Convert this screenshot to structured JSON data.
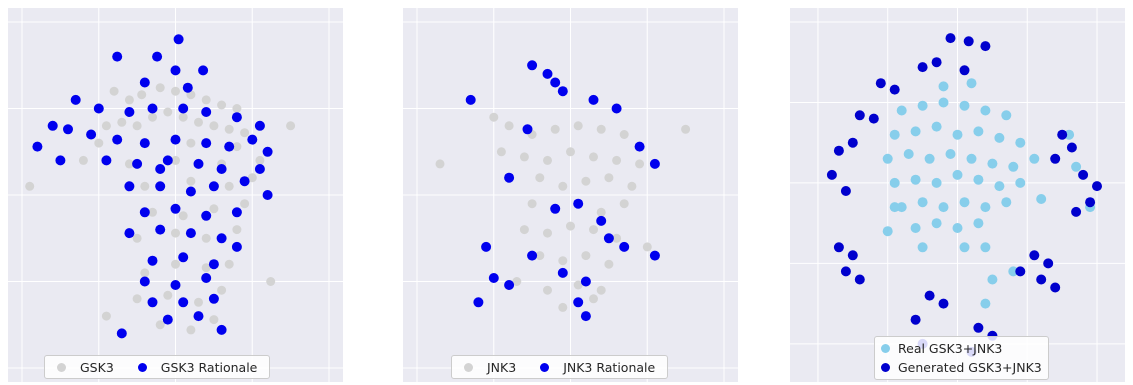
{
  "chart_data": [
    {
      "type": "scatter",
      "title": "",
      "xlabel": "",
      "ylabel": "",
      "grid": true,
      "legend_position": "bottom-center",
      "series": [
        {
          "name": "GSK3",
          "color": "#d3d3d3",
          "points": [
            [
              -40,
              60
            ],
            [
              -30,
              55
            ],
            [
              -22,
              58
            ],
            [
              -10,
              62
            ],
            [
              0,
              60
            ],
            [
              10,
              58
            ],
            [
              20,
              55
            ],
            [
              30,
              52
            ],
            [
              40,
              50
            ],
            [
              -45,
              40
            ],
            [
              -35,
              42
            ],
            [
              -25,
              40
            ],
            [
              -15,
              45
            ],
            [
              -5,
              48
            ],
            [
              5,
              45
            ],
            [
              15,
              42
            ],
            [
              25,
              40
            ],
            [
              35,
              38
            ],
            [
              45,
              36
            ],
            [
              -50,
              30
            ],
            [
              -20,
              30
            ],
            [
              10,
              30
            ],
            [
              40,
              28
            ],
            [
              -60,
              20
            ],
            [
              -30,
              18
            ],
            [
              0,
              20
            ],
            [
              30,
              18
            ],
            [
              55,
              20
            ],
            [
              -20,
              5
            ],
            [
              10,
              8
            ],
            [
              35,
              5
            ],
            [
              50,
              10
            ],
            [
              -15,
              -10
            ],
            [
              5,
              -12
            ],
            [
              25,
              -8
            ],
            [
              45,
              -5
            ],
            [
              -25,
              -25
            ],
            [
              0,
              -22
            ],
            [
              20,
              -25
            ],
            [
              40,
              -20
            ],
            [
              -20,
              -45
            ],
            [
              0,
              -40
            ],
            [
              20,
              -42
            ],
            [
              35,
              -40
            ],
            [
              -25,
              -60
            ],
            [
              -5,
              -58
            ],
            [
              15,
              -62
            ],
            [
              30,
              -55
            ],
            [
              -10,
              -75
            ],
            [
              10,
              -78
            ],
            [
              25,
              -72
            ],
            [
              -95,
              5
            ],
            [
              75,
              40
            ],
            [
              -45,
              -70
            ],
            [
              62,
              -50
            ]
          ]
        },
        {
          "name": "GSK3 Rationale",
          "color": "#0000ee",
          "points": [
            [
              2,
              90
            ],
            [
              -12,
              80
            ],
            [
              -38,
              80
            ],
            [
              0,
              72
            ],
            [
              18,
              72
            ],
            [
              -20,
              65
            ],
            [
              8,
              62
            ],
            [
              -65,
              55
            ],
            [
              -50,
              50
            ],
            [
              -30,
              48
            ],
            [
              -15,
              50
            ],
            [
              5,
              50
            ],
            [
              20,
              48
            ],
            [
              40,
              45
            ],
            [
              55,
              40
            ],
            [
              -80,
              40
            ],
            [
              -70,
              38
            ],
            [
              -55,
              35
            ],
            [
              -38,
              32
            ],
            [
              -20,
              30
            ],
            [
              0,
              32
            ],
            [
              20,
              30
            ],
            [
              35,
              28
            ],
            [
              50,
              32
            ],
            [
              60,
              25
            ],
            [
              -45,
              20
            ],
            [
              -25,
              18
            ],
            [
              -5,
              20
            ],
            [
              15,
              18
            ],
            [
              30,
              15
            ],
            [
              55,
              15
            ],
            [
              -30,
              5
            ],
            [
              -10,
              5
            ],
            [
              10,
              2
            ],
            [
              25,
              5
            ],
            [
              45,
              8
            ],
            [
              60,
              0
            ],
            [
              -20,
              -10
            ],
            [
              0,
              -8
            ],
            [
              20,
              -12
            ],
            [
              40,
              -10
            ],
            [
              -30,
              -22
            ],
            [
              -10,
              -20
            ],
            [
              10,
              -22
            ],
            [
              30,
              -25
            ],
            [
              -15,
              -38
            ],
            [
              5,
              -36
            ],
            [
              25,
              -40
            ],
            [
              -20,
              -50
            ],
            [
              0,
              -52
            ],
            [
              20,
              -48
            ],
            [
              -15,
              -62
            ],
            [
              5,
              -62
            ],
            [
              25,
              -60
            ],
            [
              -5,
              -72
            ],
            [
              15,
              -70
            ],
            [
              -35,
              -80
            ],
            [
              30,
              -78
            ],
            [
              -90,
              28
            ],
            [
              -75,
              20
            ],
            [
              -10,
              15
            ],
            [
              40,
              -30
            ]
          ]
        }
      ],
      "xlim": [
        -100,
        100
      ],
      "ylim": [
        -100,
        100
      ]
    },
    {
      "type": "scatter",
      "title": "",
      "xlabel": "",
      "ylabel": "",
      "grid": true,
      "legend_position": "bottom-center",
      "series": [
        {
          "name": "JNK3",
          "color": "#d3d3d3",
          "points": [
            [
              -40,
              40
            ],
            [
              -25,
              35
            ],
            [
              -10,
              38
            ],
            [
              5,
              40
            ],
            [
              20,
              38
            ],
            [
              35,
              35
            ],
            [
              -45,
              25
            ],
            [
              -30,
              22
            ],
            [
              -15,
              20
            ],
            [
              0,
              25
            ],
            [
              15,
              22
            ],
            [
              30,
              20
            ],
            [
              45,
              18
            ],
            [
              -20,
              10
            ],
            [
              -5,
              5
            ],
            [
              10,
              8
            ],
            [
              25,
              10
            ],
            [
              40,
              5
            ],
            [
              -25,
              -5
            ],
            [
              -10,
              -8
            ],
            [
              5,
              -5
            ],
            [
              20,
              -10
            ],
            [
              35,
              -5
            ],
            [
              -30,
              -20
            ],
            [
              -15,
              -22
            ],
            [
              0,
              -18
            ],
            [
              15,
              -20
            ],
            [
              30,
              -25
            ],
            [
              -20,
              -35
            ],
            [
              -5,
              -38
            ],
            [
              10,
              -35
            ],
            [
              25,
              -40
            ],
            [
              -35,
              -50
            ],
            [
              -15,
              -55
            ],
            [
              5,
              -52
            ],
            [
              20,
              -55
            ],
            [
              -5,
              -65
            ],
            [
              15,
              -60
            ],
            [
              -85,
              18
            ],
            [
              75,
              38
            ],
            [
              -50,
              45
            ],
            [
              50,
              -30
            ]
          ]
        },
        {
          "name": "JNK3 Rationale",
          "color": "#0000ee",
          "points": [
            [
              -25,
              75
            ],
            [
              -15,
              70
            ],
            [
              -10,
              65
            ],
            [
              -5,
              60
            ],
            [
              -65,
              55
            ],
            [
              15,
              55
            ],
            [
              30,
              50
            ],
            [
              -28,
              38
            ],
            [
              45,
              28
            ],
            [
              55,
              18
            ],
            [
              -40,
              10
            ],
            [
              -10,
              -8
            ],
            [
              5,
              -5
            ],
            [
              20,
              -15
            ],
            [
              25,
              -25
            ],
            [
              -55,
              -30
            ],
            [
              -25,
              -35
            ],
            [
              35,
              -30
            ],
            [
              55,
              -35
            ],
            [
              -50,
              -48
            ],
            [
              -40,
              -52
            ],
            [
              -5,
              -45
            ],
            [
              10,
              -50
            ],
            [
              -60,
              -62
            ],
            [
              5,
              -62
            ],
            [
              10,
              -70
            ]
          ]
        }
      ],
      "xlim": [
        -100,
        100
      ],
      "ylim": [
        -100,
        100
      ]
    },
    {
      "type": "scatter",
      "title": "",
      "xlabel": "",
      "ylabel": "",
      "grid": true,
      "legend_position": "bottom-center",
      "series": [
        {
          "name": "Real GSK3+JNK3",
          "color": "#87ceeb",
          "points": [
            [
              -40,
              45
            ],
            [
              -25,
              48
            ],
            [
              -10,
              50
            ],
            [
              5,
              48
            ],
            [
              20,
              45
            ],
            [
              35,
              42
            ],
            [
              -45,
              30
            ],
            [
              -30,
              32
            ],
            [
              -15,
              35
            ],
            [
              0,
              30
            ],
            [
              15,
              32
            ],
            [
              30,
              28
            ],
            [
              45,
              25
            ],
            [
              -50,
              15
            ],
            [
              -35,
              18
            ],
            [
              -20,
              15
            ],
            [
              -5,
              18
            ],
            [
              10,
              15
            ],
            [
              25,
              12
            ],
            [
              40,
              10
            ],
            [
              55,
              15
            ],
            [
              -45,
              0
            ],
            [
              -30,
              2
            ],
            [
              -15,
              0
            ],
            [
              0,
              5
            ],
            [
              15,
              2
            ],
            [
              30,
              -2
            ],
            [
              45,
              0
            ],
            [
              -40,
              -15
            ],
            [
              -25,
              -12
            ],
            [
              -10,
              -15
            ],
            [
              5,
              -12
            ],
            [
              20,
              -15
            ],
            [
              35,
              -12
            ],
            [
              -30,
              -28
            ],
            [
              -15,
              -25
            ],
            [
              0,
              -28
            ],
            [
              15,
              -25
            ],
            [
              -50,
              -30
            ],
            [
              -25,
              -40
            ],
            [
              5,
              -40
            ],
            [
              20,
              -40
            ],
            [
              -10,
              60
            ],
            [
              10,
              62
            ],
            [
              80,
              30
            ],
            [
              85,
              10
            ],
            [
              95,
              -15
            ],
            [
              20,
              -75
            ],
            [
              25,
              -60
            ],
            [
              40,
              -55
            ],
            [
              -45,
              -15
            ],
            [
              60,
              -10
            ]
          ]
        },
        {
          "name": "Generated GSK3+JNK3",
          "color": "#0000cd",
          "points": [
            [
              -5,
              90
            ],
            [
              8,
              88
            ],
            [
              20,
              85
            ],
            [
              -25,
              72
            ],
            [
              -15,
              75
            ],
            [
              5,
              70
            ],
            [
              -55,
              62
            ],
            [
              -45,
              58
            ],
            [
              -70,
              42
            ],
            [
              -60,
              40
            ],
            [
              -75,
              25
            ],
            [
              -85,
              20
            ],
            [
              -90,
              5
            ],
            [
              -80,
              -5
            ],
            [
              75,
              30
            ],
            [
              82,
              22
            ],
            [
              70,
              15
            ],
            [
              90,
              5
            ],
            [
              100,
              -2
            ],
            [
              95,
              -12
            ],
            [
              85,
              -18
            ],
            [
              -85,
              -40
            ],
            [
              -75,
              -45
            ],
            [
              -80,
              -55
            ],
            [
              -70,
              -60
            ],
            [
              55,
              -45
            ],
            [
              65,
              -50
            ],
            [
              60,
              -60
            ],
            [
              70,
              -65
            ],
            [
              45,
              -55
            ],
            [
              -20,
              -70
            ],
            [
              -10,
              -75
            ],
            [
              -30,
              -85
            ],
            [
              15,
              -90
            ],
            [
              25,
              -95
            ],
            [
              10,
              -105
            ],
            [
              -25,
              -100
            ]
          ]
        }
      ],
      "xlim": [
        -110,
        110
      ],
      "ylim": [
        -115,
        100
      ]
    }
  ],
  "legends": [
    [
      "GSK3",
      "GSK3 Rationale"
    ],
    [
      "JNK3",
      "JNK3 Rationale"
    ],
    [
      "Real GSK3+JNK3",
      "Generated GSK3+JNK3"
    ]
  ]
}
